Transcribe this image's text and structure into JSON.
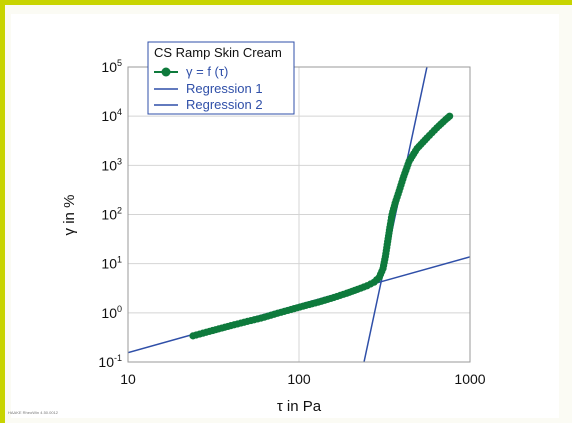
{
  "colors": {
    "frame_border": "#c8d400",
    "series": "#0e7a3c",
    "regression": "#2f4fa8",
    "grid": "#d4d4d4",
    "legend_border": "#2f4fa8"
  },
  "chart_data": {
    "type": "scatter",
    "title": "",
    "xlabel": "τ in Pa",
    "ylabel": "γ in %",
    "x_scale": "log",
    "y_scale": "log",
    "xlim": [
      10,
      1000
    ],
    "ylim": [
      0.1,
      100000
    ],
    "grid": true,
    "legend_title": "CS Ramp Skin Cream",
    "legend_position": "top-left",
    "x_ticks": [
      {
        "value": 10,
        "label": "10"
      },
      {
        "value": 100,
        "label": "100"
      },
      {
        "value": 1000,
        "label": "1000"
      }
    ],
    "y_ticks": [
      {
        "value": 0.1,
        "base": "10",
        "exp": "-1"
      },
      {
        "value": 1,
        "base": "10",
        "exp": "0"
      },
      {
        "value": 10,
        "base": "10",
        "exp": "1"
      },
      {
        "value": 100,
        "base": "10",
        "exp": "2"
      },
      {
        "value": 1000,
        "base": "10",
        "exp": "3"
      },
      {
        "value": 10000,
        "base": "10",
        "exp": "4"
      },
      {
        "value": 100000,
        "base": "10",
        "exp": "5"
      }
    ],
    "series": [
      {
        "name": "γ = f (τ)",
        "kind": "points",
        "points": [
          [
            24,
            0.34
          ],
          [
            30,
            0.42
          ],
          [
            40,
            0.55
          ],
          [
            50,
            0.67
          ],
          [
            60,
            0.78
          ],
          [
            75,
            0.98
          ],
          [
            90,
            1.17
          ],
          [
            110,
            1.42
          ],
          [
            130,
            1.65
          ],
          [
            160,
            2.05
          ],
          [
            190,
            2.5
          ],
          [
            220,
            3.0
          ],
          [
            250,
            3.55
          ],
          [
            275,
            4.2
          ],
          [
            295,
            5.3
          ],
          [
            310,
            8
          ],
          [
            320,
            14
          ],
          [
            330,
            28
          ],
          [
            340,
            55
          ],
          [
            350,
            100
          ],
          [
            365,
            170
          ],
          [
            385,
            300
          ],
          [
            410,
            600
          ],
          [
            440,
            1200
          ],
          [
            490,
            2200
          ],
          [
            560,
            3600
          ],
          [
            640,
            5800
          ],
          [
            720,
            8500
          ],
          [
            760,
            10000
          ]
        ]
      },
      {
        "name": "Regression 1",
        "kind": "line",
        "points": [
          [
            10,
            0.155
          ],
          [
            1000,
            13.8
          ]
        ]
      },
      {
        "name": "Regression 2",
        "kind": "line",
        "points": [
          [
            240,
            0.1
          ],
          [
            560,
            100000
          ]
        ]
      }
    ]
  },
  "footnote": "HAAKE RheoWin 4.50.0012"
}
